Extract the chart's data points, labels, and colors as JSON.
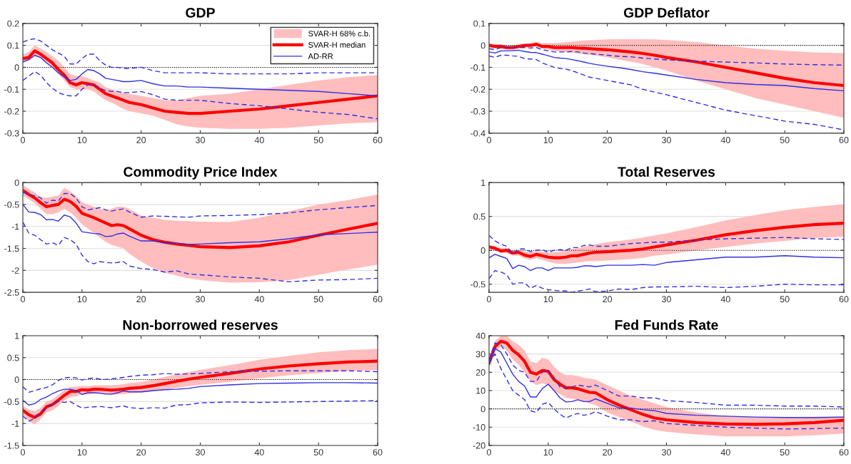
{
  "chart_data": [
    {
      "type": "line",
      "title": "GDP",
      "annotations": [
        "SVAR-H 68% c.b."
      ],
      "x": [
        0,
        1,
        2,
        3,
        4,
        5,
        6,
        7,
        8,
        9,
        10,
        11,
        12,
        13,
        14,
        15,
        16,
        17,
        18,
        20,
        22,
        24,
        26,
        28,
        30,
        35,
        40,
        45,
        50,
        55,
        60
      ],
      "xlim": [
        0,
        60
      ],
      "xticks": [
        0,
        10,
        20,
        30,
        40,
        50,
        60
      ],
      "ylim": [
        -0.3,
        0.2
      ],
      "yticks": [
        -0.3,
        -0.2,
        -0.1,
        0,
        0.1,
        0.2
      ],
      "grid": "y",
      "legend": "top right",
      "ref_lines": [
        {
          "axis": "y",
          "value": 0,
          "color": "#000000",
          "line_style": "dotted"
        }
      ],
      "series": [
        {
          "name": "SVAR-H median",
          "color": "#ff0000",
          "line_style": "solid",
          "values": [
            0.04,
            0.045,
            0.075,
            0.06,
            0.04,
            0.02,
            -0.01,
            -0.035,
            -0.07,
            -0.08,
            -0.07,
            -0.075,
            -0.08,
            -0.1,
            -0.12,
            -0.13,
            -0.14,
            -0.15,
            -0.16,
            -0.17,
            -0.185,
            -0.2,
            -0.205,
            -0.21,
            -0.21,
            -0.2,
            -0.19,
            -0.175,
            -0.16,
            -0.145,
            -0.13
          ],
          "lower": [
            0.02,
            0.03,
            0.05,
            0.04,
            0.02,
            0.0,
            -0.03,
            -0.06,
            -0.09,
            -0.1,
            -0.1,
            -0.1,
            -0.11,
            -0.13,
            -0.15,
            -0.16,
            -0.175,
            -0.19,
            -0.2,
            -0.21,
            -0.22,
            -0.24,
            -0.26,
            -0.27,
            -0.275,
            -0.28,
            -0.28,
            -0.275,
            -0.265,
            -0.255,
            -0.25
          ],
          "upper": [
            0.06,
            0.07,
            0.1,
            0.085,
            0.07,
            0.05,
            0.03,
            0.0,
            -0.03,
            -0.04,
            -0.04,
            -0.05,
            -0.06,
            -0.07,
            -0.09,
            -0.1,
            -0.11,
            -0.115,
            -0.12,
            -0.13,
            -0.14,
            -0.15,
            -0.15,
            -0.14,
            -0.13,
            -0.12,
            -0.1,
            -0.08,
            -0.06,
            -0.045,
            -0.035
          ]
        },
        {
          "name": "AD-RR",
          "color": "#2f2fe6",
          "line_style": "solid",
          "values": [
            0.025,
            0.035,
            0.055,
            0.045,
            0.02,
            0.0,
            -0.025,
            -0.045,
            -0.06,
            -0.055,
            -0.03,
            -0.01,
            -0.015,
            -0.03,
            -0.05,
            -0.055,
            -0.06,
            -0.065,
            -0.065,
            -0.06,
            -0.075,
            -0.085,
            -0.085,
            -0.09,
            -0.09,
            -0.095,
            -0.1,
            -0.105,
            -0.11,
            -0.12,
            -0.13
          ]
        },
        {
          "color": "#2f2fe6",
          "line_style": "dashed",
          "values": [
            0.115,
            0.125,
            0.13,
            0.12,
            0.1,
            0.08,
            0.065,
            0.05,
            0.015,
            0.015,
            0.04,
            0.06,
            0.06,
            0.03,
            0.01,
            0.0,
            0.0,
            -0.005,
            -0.005,
            0.0,
            -0.015,
            -0.025,
            -0.025,
            -0.025,
            -0.025,
            -0.03,
            -0.03,
            -0.03,
            -0.025,
            -0.025,
            -0.025
          ]
        },
        {
          "color": "#2f2fe6",
          "line_style": "dashed",
          "values": [
            -0.06,
            -0.04,
            -0.02,
            -0.035,
            -0.07,
            -0.095,
            -0.115,
            -0.125,
            -0.13,
            -0.13,
            -0.1,
            -0.08,
            -0.08,
            -0.095,
            -0.105,
            -0.11,
            -0.11,
            -0.115,
            -0.115,
            -0.11,
            -0.125,
            -0.145,
            -0.15,
            -0.15,
            -0.15,
            -0.165,
            -0.175,
            -0.19,
            -0.205,
            -0.215,
            -0.235
          ]
        }
      ]
    },
    {
      "type": "line",
      "title": "GDP Deflator",
      "x": [
        0,
        1,
        2,
        3,
        4,
        5,
        6,
        7,
        8,
        9,
        10,
        11,
        12,
        13,
        14,
        15,
        16,
        17,
        18,
        20,
        22,
        24,
        26,
        28,
        30,
        35,
        40,
        45,
        50,
        55,
        60
      ],
      "xlim": [
        0,
        60
      ],
      "xticks": [
        0,
        10,
        20,
        30,
        40,
        50,
        60
      ],
      "ylim": [
        -0.4,
        0.1
      ],
      "yticks": [
        -0.4,
        -0.3,
        -0.2,
        -0.1,
        0,
        0.1
      ],
      "grid": "y",
      "ref_lines": [
        {
          "axis": "y",
          "value": 0,
          "color": "#000000",
          "line_style": "dotted"
        }
      ],
      "series": [
        {
          "color": "#ff0000",
          "line_style": "solid",
          "values": [
            0,
            -0.005,
            -0.005,
            -0.01,
            -0.01,
            -0.005,
            0,
            0,
            0.005,
            -0.005,
            -0.005,
            -0.01,
            -0.01,
            -0.01,
            -0.01,
            -0.012,
            -0.013,
            -0.015,
            -0.017,
            -0.02,
            -0.025,
            -0.03,
            -0.037,
            -0.045,
            -0.055,
            -0.075,
            -0.1,
            -0.125,
            -0.15,
            -0.17,
            -0.183
          ],
          "lower": [
            -0.01,
            -0.015,
            -0.015,
            -0.02,
            -0.02,
            -0.015,
            -0.01,
            -0.008,
            -0.005,
            -0.015,
            -0.02,
            -0.025,
            -0.028,
            -0.03,
            -0.033,
            -0.036,
            -0.04,
            -0.043,
            -0.047,
            -0.055,
            -0.065,
            -0.075,
            -0.085,
            -0.1,
            -0.115,
            -0.16,
            -0.2,
            -0.24,
            -0.27,
            -0.3,
            -0.33
          ],
          "upper": [
            0.01,
            0.005,
            0.005,
            0,
            0,
            0.005,
            0.005,
            0.01,
            0.015,
            0.01,
            0.01,
            0.01,
            0.012,
            0.015,
            0.017,
            0.02,
            0.022,
            0.024,
            0.025,
            0.027,
            0.028,
            0.028,
            0.028,
            0.027,
            0.025,
            0.015,
            0.0,
            -0.015,
            -0.025,
            -0.032,
            -0.035
          ]
        },
        {
          "color": "#2f2fe6",
          "line_style": "solid",
          "values": [
            -0.03,
            -0.035,
            -0.025,
            -0.025,
            -0.024,
            -0.022,
            -0.028,
            -0.032,
            -0.033,
            -0.04,
            -0.047,
            -0.055,
            -0.058,
            -0.06,
            -0.065,
            -0.07,
            -0.076,
            -0.082,
            -0.087,
            -0.095,
            -0.102,
            -0.11,
            -0.12,
            -0.127,
            -0.135,
            -0.155,
            -0.17,
            -0.178,
            -0.183,
            -0.197,
            -0.207
          ]
        },
        {
          "color": "#2f2fe6",
          "line_style": "dashed",
          "values": [
            -0.015,
            -0.02,
            -0.01,
            -0.01,
            -0.012,
            -0.01,
            -0.01,
            -0.012,
            -0.01,
            -0.02,
            -0.025,
            -0.03,
            -0.03,
            -0.03,
            -0.028,
            -0.03,
            -0.035,
            -0.037,
            -0.04,
            -0.045,
            -0.05,
            -0.052,
            -0.058,
            -0.062,
            -0.066,
            -0.072,
            -0.076,
            -0.08,
            -0.085,
            -0.088,
            -0.09
          ]
        },
        {
          "color": "#2f2fe6",
          "line_style": "dashed",
          "values": [
            -0.048,
            -0.055,
            -0.045,
            -0.045,
            -0.048,
            -0.05,
            -0.06,
            -0.062,
            -0.065,
            -0.08,
            -0.09,
            -0.1,
            -0.105,
            -0.108,
            -0.115,
            -0.125,
            -0.135,
            -0.145,
            -0.15,
            -0.16,
            -0.17,
            -0.18,
            -0.2,
            -0.213,
            -0.225,
            -0.26,
            -0.295,
            -0.32,
            -0.345,
            -0.36,
            -0.385
          ]
        }
      ]
    },
    {
      "type": "line",
      "title": "Commodity Price Index",
      "x": [
        0,
        1,
        2,
        3,
        4,
        5,
        6,
        7,
        8,
        9,
        10,
        11,
        12,
        13,
        14,
        15,
        16,
        17,
        18,
        20,
        22,
        24,
        26,
        28,
        30,
        35,
        40,
        45,
        50,
        55,
        60
      ],
      "xlim": [
        0,
        60
      ],
      "xticks": [
        0,
        10,
        20,
        30,
        40,
        50,
        60
      ],
      "ylim": [
        -2.5,
        0
      ],
      "yticks": [
        -2.5,
        -2,
        -1.5,
        -1,
        -0.5,
        0
      ],
      "grid": "y",
      "ref_lines": [
        {
          "axis": "y",
          "value": 0,
          "color": "#000000",
          "line_style": "dotted"
        }
      ],
      "series": [
        {
          "color": "#ff0000",
          "line_style": "solid",
          "values": [
            -0.18,
            -0.27,
            -0.35,
            -0.46,
            -0.55,
            -0.52,
            -0.5,
            -0.38,
            -0.43,
            -0.54,
            -0.7,
            -0.75,
            -0.8,
            -0.86,
            -0.92,
            -0.98,
            -0.96,
            -0.98,
            -1.05,
            -1.2,
            -1.3,
            -1.36,
            -1.4,
            -1.43,
            -1.46,
            -1.48,
            -1.44,
            -1.35,
            -1.2,
            -1.06,
            -0.93
          ],
          "lower": [
            -0.3,
            -0.38,
            -0.47,
            -0.6,
            -0.72,
            -0.72,
            -0.68,
            -0.6,
            -0.68,
            -0.8,
            -0.95,
            -1.05,
            -1.15,
            -1.25,
            -1.35,
            -1.42,
            -1.46,
            -1.5,
            -1.62,
            -1.8,
            -1.95,
            -2.05,
            -2.12,
            -2.18,
            -2.22,
            -2.28,
            -2.27,
            -2.22,
            -2.1,
            -1.98,
            -1.87
          ],
          "upper": [
            -0.05,
            -0.15,
            -0.22,
            -0.32,
            -0.35,
            -0.32,
            -0.3,
            -0.12,
            -0.2,
            -0.3,
            -0.45,
            -0.5,
            -0.55,
            -0.6,
            -0.63,
            -0.6,
            -0.55,
            -0.55,
            -0.6,
            -0.75,
            -0.8,
            -0.85,
            -0.87,
            -0.88,
            -0.89,
            -0.9,
            -0.8,
            -0.65,
            -0.5,
            -0.4,
            -0.27
          ]
        },
        {
          "color": "#2f2fe6",
          "line_style": "solid",
          "values": [
            -0.5,
            -0.67,
            -0.68,
            -0.73,
            -0.85,
            -0.84,
            -0.88,
            -0.74,
            -0.78,
            -0.92,
            -1.12,
            -1.14,
            -1.16,
            -1.17,
            -1.23,
            -1.22,
            -1.17,
            -1.15,
            -1.22,
            -1.33,
            -1.33,
            -1.37,
            -1.38,
            -1.41,
            -1.4,
            -1.37,
            -1.35,
            -1.28,
            -1.19,
            -1.16,
            -1.13
          ]
        },
        {
          "color": "#2f2fe6",
          "line_style": "dashed",
          "values": [
            -0.22,
            -0.27,
            -0.3,
            -0.35,
            -0.47,
            -0.4,
            -0.42,
            -0.25,
            -0.25,
            -0.35,
            -0.55,
            -0.62,
            -0.6,
            -0.57,
            -0.62,
            -0.65,
            -0.62,
            -0.6,
            -0.67,
            -0.79,
            -0.76,
            -0.77,
            -0.78,
            -0.79,
            -0.76,
            -0.75,
            -0.73,
            -0.69,
            -0.62,
            -0.57,
            -0.52
          ]
        },
        {
          "color": "#2f2fe6",
          "line_style": "dashed",
          "values": [
            -0.9,
            -1.15,
            -1.2,
            -1.3,
            -1.4,
            -1.37,
            -1.43,
            -1.25,
            -1.3,
            -1.4,
            -1.65,
            -1.8,
            -1.85,
            -1.8,
            -1.82,
            -1.83,
            -1.82,
            -1.8,
            -1.9,
            -1.96,
            -1.98,
            -2.04,
            -2.01,
            -2.08,
            -2.1,
            -2.15,
            -2.18,
            -2.26,
            -2.22,
            -2.21,
            -2.18
          ]
        }
      ]
    },
    {
      "type": "line",
      "title": "Total Reserves",
      "x": [
        0,
        1,
        2,
        3,
        4,
        5,
        6,
        7,
        8,
        9,
        10,
        11,
        12,
        13,
        14,
        15,
        16,
        17,
        18,
        20,
        22,
        24,
        26,
        28,
        30,
        35,
        40,
        45,
        50,
        55,
        60
      ],
      "xlim": [
        0,
        60
      ],
      "xticks": [
        0,
        10,
        20,
        30,
        40,
        50,
        60
      ],
      "ylim": [
        -0.62,
        1
      ],
      "yticks": [
        -0.5,
        0,
        0.5,
        1
      ],
      "grid": "y",
      "ref_lines": [
        {
          "axis": "y",
          "value": 0,
          "color": "#000000",
          "line_style": "dotted"
        }
      ],
      "series": [
        {
          "color": "#ff0000",
          "line_style": "solid",
          "values": [
            0.05,
            0.03,
            -0.01,
            0.0,
            -0.04,
            -0.03,
            -0.07,
            -0.09,
            -0.06,
            -0.08,
            -0.1,
            -0.11,
            -0.11,
            -0.1,
            -0.08,
            -0.08,
            -0.06,
            -0.04,
            -0.03,
            -0.02,
            -0.01,
            0.0,
            0.02,
            0.05,
            0.08,
            0.15,
            0.23,
            0.29,
            0.34,
            0.38,
            0.4
          ],
          "lower": [
            0.02,
            0.0,
            -0.04,
            -0.04,
            -0.08,
            -0.08,
            -0.12,
            -0.14,
            -0.12,
            -0.14,
            -0.17,
            -0.19,
            -0.2,
            -0.2,
            -0.19,
            -0.18,
            -0.17,
            -0.16,
            -0.16,
            -0.15,
            -0.14,
            -0.13,
            -0.11,
            -0.08,
            -0.06,
            0.0,
            0.05,
            0.1,
            0.14,
            0.18,
            0.2
          ],
          "upper": [
            0.08,
            0.06,
            0.03,
            0.03,
            0.0,
            0.01,
            -0.02,
            -0.03,
            -0.01,
            -0.02,
            -0.03,
            -0.03,
            -0.02,
            0.0,
            0.02,
            0.03,
            0.05,
            0.07,
            0.09,
            0.12,
            0.14,
            0.16,
            0.19,
            0.22,
            0.25,
            0.34,
            0.44,
            0.52,
            0.59,
            0.64,
            0.68
          ]
        },
        {
          "color": "#2f2fe6",
          "line_style": "solid",
          "values": [
            -0.11,
            -0.06,
            -0.09,
            -0.12,
            -0.27,
            -0.22,
            -0.24,
            -0.3,
            -0.26,
            -0.26,
            -0.3,
            -0.26,
            -0.26,
            -0.26,
            -0.26,
            -0.25,
            -0.23,
            -0.23,
            -0.24,
            -0.22,
            -0.22,
            -0.22,
            -0.21,
            -0.22,
            -0.18,
            -0.14,
            -0.1,
            -0.1,
            -0.08,
            -0.1,
            -0.11
          ]
        },
        {
          "color": "#2f2fe6",
          "line_style": "dashed",
          "values": [
            0.22,
            0.14,
            0.09,
            0.06,
            -0.05,
            0.02,
            0.02,
            -0.02,
            0.0,
            0.01,
            -0.03,
            0.0,
            0.01,
            0.0,
            0.04,
            0.04,
            0.07,
            0.08,
            0.06,
            0.06,
            0.08,
            0.1,
            0.11,
            0.12,
            0.12,
            0.15,
            0.17,
            0.18,
            0.19,
            0.17,
            0.16
          ]
        },
        {
          "color": "#2f2fe6",
          "line_style": "dashed",
          "values": [
            -0.42,
            -0.3,
            -0.32,
            -0.36,
            -0.5,
            -0.48,
            -0.48,
            -0.56,
            -0.52,
            -0.56,
            -0.58,
            -0.59,
            -0.6,
            -0.6,
            -0.62,
            -0.6,
            -0.59,
            -0.57,
            -0.61,
            -0.6,
            -0.57,
            -0.58,
            -0.55,
            -0.54,
            -0.54,
            -0.53,
            -0.55,
            -0.53,
            -0.5,
            -0.51,
            -0.51
          ]
        }
      ]
    },
    {
      "type": "line",
      "title": "Non-borrowed reserves",
      "x": [
        0,
        1,
        2,
        3,
        4,
        5,
        6,
        7,
        8,
        9,
        10,
        11,
        12,
        13,
        14,
        15,
        16,
        17,
        18,
        20,
        22,
        24,
        26,
        28,
        30,
        35,
        40,
        45,
        50,
        55,
        60
      ],
      "xlim": [
        0,
        60
      ],
      "xticks": [
        0,
        10,
        20,
        30,
        40,
        50,
        60
      ],
      "ylim": [
        -1.5,
        1
      ],
      "yticks": [
        -1.5,
        -1,
        -0.5,
        0,
        0.5,
        1
      ],
      "grid": "y",
      "ref_lines": [
        {
          "axis": "y",
          "value": 0,
          "color": "#000000",
          "line_style": "dotted"
        }
      ],
      "series": [
        {
          "color": "#ff0000",
          "line_style": "solid",
          "values": [
            -0.7,
            -0.8,
            -0.86,
            -0.78,
            -0.62,
            -0.57,
            -0.47,
            -0.36,
            -0.27,
            -0.27,
            -0.23,
            -0.24,
            -0.22,
            -0.22,
            -0.23,
            -0.24,
            -0.23,
            -0.22,
            -0.2,
            -0.18,
            -0.14,
            -0.09,
            -0.04,
            0.01,
            0.05,
            0.14,
            0.24,
            0.31,
            0.36,
            0.4,
            0.42
          ],
          "lower": [
            -0.8,
            -0.95,
            -1.02,
            -0.9,
            -0.75,
            -0.7,
            -0.6,
            -0.48,
            -0.4,
            -0.38,
            -0.33,
            -0.34,
            -0.32,
            -0.32,
            -0.33,
            -0.35,
            -0.34,
            -0.33,
            -0.31,
            -0.3,
            -0.27,
            -0.23,
            -0.19,
            -0.15,
            -0.12,
            -0.05,
            0.03,
            0.1,
            0.15,
            0.19,
            0.22
          ],
          "upper": [
            -0.6,
            -0.68,
            -0.72,
            -0.65,
            -0.5,
            -0.45,
            -0.35,
            -0.24,
            -0.17,
            -0.16,
            -0.14,
            -0.15,
            -0.13,
            -0.13,
            -0.13,
            -0.13,
            -0.12,
            -0.1,
            -0.08,
            -0.05,
            0.0,
            0.06,
            0.12,
            0.17,
            0.22,
            0.33,
            0.45,
            0.54,
            0.62,
            0.67,
            0.7
          ]
        },
        {
          "color": "#2f2fe6",
          "line_style": "solid",
          "values": [
            -0.47,
            -0.58,
            -0.55,
            -0.45,
            -0.4,
            -0.32,
            -0.26,
            -0.22,
            -0.22,
            -0.25,
            -0.34,
            -0.3,
            -0.3,
            -0.31,
            -0.33,
            -0.33,
            -0.3,
            -0.26,
            -0.28,
            -0.28,
            -0.25,
            -0.23,
            -0.22,
            -0.2,
            -0.16,
            -0.12,
            -0.09,
            -0.08,
            -0.07,
            -0.07,
            -0.08
          ]
        },
        {
          "color": "#2f2fe6",
          "line_style": "dashed",
          "values": [
            -0.16,
            -0.29,
            -0.25,
            -0.21,
            -0.18,
            -0.12,
            -0.02,
            0.04,
            0.05,
            0.04,
            -0.01,
            0.02,
            0.04,
            0.01,
            0.0,
            0.02,
            0.03,
            0.05,
            0.07,
            0.1,
            0.11,
            0.14,
            0.12,
            0.13,
            0.14,
            0.18,
            0.19,
            0.2,
            0.2,
            0.2,
            0.18
          ]
        },
        {
          "color": "#2f2fe6",
          "line_style": "dashed",
          "values": [
            -0.83,
            -0.95,
            -0.88,
            -0.76,
            -0.64,
            -0.55,
            -0.5,
            -0.52,
            -0.5,
            -0.58,
            -0.65,
            -0.63,
            -0.62,
            -0.61,
            -0.63,
            -0.64,
            -0.62,
            -0.6,
            -0.64,
            -0.66,
            -0.64,
            -0.65,
            -0.58,
            -0.57,
            -0.53,
            -0.51,
            -0.52,
            -0.51,
            -0.5,
            -0.49,
            -0.48
          ]
        }
      ]
    },
    {
      "type": "line",
      "title": "Fed Funds Rate",
      "x": [
        0,
        1,
        2,
        3,
        4,
        5,
        6,
        7,
        8,
        9,
        10,
        11,
        12,
        13,
        14,
        15,
        16,
        17,
        18,
        20,
        22,
        24,
        26,
        28,
        30,
        35,
        40,
        45,
        50,
        55,
        60
      ],
      "xlim": [
        0,
        60
      ],
      "xticks": [
        0,
        10,
        20,
        30,
        40,
        50,
        60
      ],
      "ylim": [
        -20,
        40
      ],
      "yticks": [
        -20,
        -10,
        0,
        10,
        20,
        30,
        40
      ],
      "grid": "y",
      "ref_lines": [
        {
          "axis": "y",
          "value": 0,
          "color": "#000000",
          "line_style": "dotted"
        }
      ],
      "series": [
        {
          "color": "#ff0000",
          "line_style": "solid",
          "values": [
            25,
            34,
            37,
            36,
            32,
            29.5,
            26,
            20,
            19,
            21,
            20.5,
            16,
            13.5,
            11.5,
            11.5,
            11,
            10,
            9,
            8.8,
            5,
            2,
            -0.5,
            -3,
            -5,
            -6,
            -7.5,
            -8.3,
            -8.5,
            -8.2,
            -7.5,
            -6.2
          ],
          "lower": [
            23,
            31,
            34,
            32,
            27,
            24,
            20,
            15,
            13,
            14,
            13,
            10,
            8,
            6,
            5.5,
            5,
            4,
            3,
            2,
            -2,
            -4.5,
            -7,
            -9.5,
            -11.5,
            -12.5,
            -14,
            -15,
            -15,
            -15,
            -14.5,
            -13.5
          ],
          "upper": [
            27,
            37,
            40,
            40,
            37,
            35,
            32,
            26,
            25,
            28,
            27,
            23,
            20,
            18.5,
            18.5,
            18,
            17,
            16.5,
            16,
            13,
            10,
            7,
            5,
            3,
            1,
            -2,
            -4,
            -4.5,
            -4.5,
            -4.2,
            -4
          ]
        },
        {
          "color": "#2f2fe6",
          "line_style": "solid",
          "values": [
            25,
            33,
            31,
            25,
            19,
            15,
            12.5,
            6.5,
            6.5,
            11,
            13.5,
            10,
            6,
            3.8,
            4,
            5,
            4,
            4,
            5.5,
            3,
            0.5,
            0.5,
            -0.5,
            -1,
            -2.5,
            -3.5,
            -4,
            -4.5,
            -4.7,
            -4.8,
            -4.5
          ]
        },
        {
          "color": "#2f2fe6",
          "line_style": "dashed",
          "values": [
            27,
            36,
            35,
            30,
            24,
            21,
            20,
            15,
            15,
            20,
            21,
            17,
            12,
            11.5,
            12,
            13,
            12.5,
            12,
            13,
            10,
            7,
            7,
            6,
            6,
            4.5,
            3.5,
            2,
            2,
            1.5,
            1.5,
            1
          ]
        },
        {
          "color": "#2f2fe6",
          "line_style": "dashed",
          "values": [
            25,
            30,
            22,
            16,
            10,
            7.5,
            5,
            -1,
            -2,
            2.5,
            3.5,
            0,
            -3,
            -5,
            -3.5,
            -2.5,
            -3.5,
            -3,
            -1.5,
            -4,
            -6,
            -6,
            -7,
            -6.5,
            -8,
            -9,
            -10,
            -10.5,
            -11,
            -10.8,
            -10.5
          ]
        }
      ]
    }
  ]
}
